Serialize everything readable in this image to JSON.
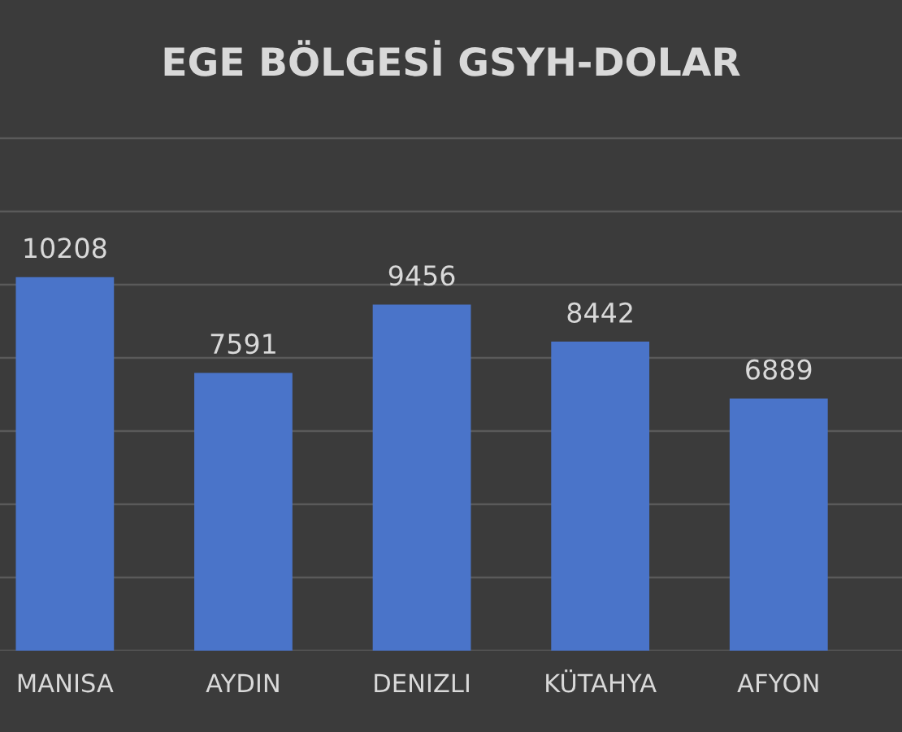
{
  "chart_data": {
    "type": "bar",
    "title": "EGE BÖLGESİ GSYH-DOLAR",
    "categories": [
      "MANISA",
      "AYDIN",
      "DENIZLI",
      "KÜTAHYA",
      "AFYON"
    ],
    "values": [
      10208,
      7591,
      9456,
      8442,
      6889
    ],
    "color": "#4a74c9",
    "yticks": [
      {
        "value": 0,
        "label": null
      },
      {
        "value": 2000,
        "label": null
      },
      {
        "value": 4000,
        "label": null
      },
      {
        "value": 6000,
        "label": null
      },
      {
        "value": 8000,
        "label": null
      },
      {
        "value": 10000,
        "label": null
      },
      {
        "value": 12000,
        "label": null
      },
      {
        "value": 14000,
        "label": null
      }
    ],
    "grid": "y",
    "data_labels": true,
    "tick_labels": "x"
  }
}
